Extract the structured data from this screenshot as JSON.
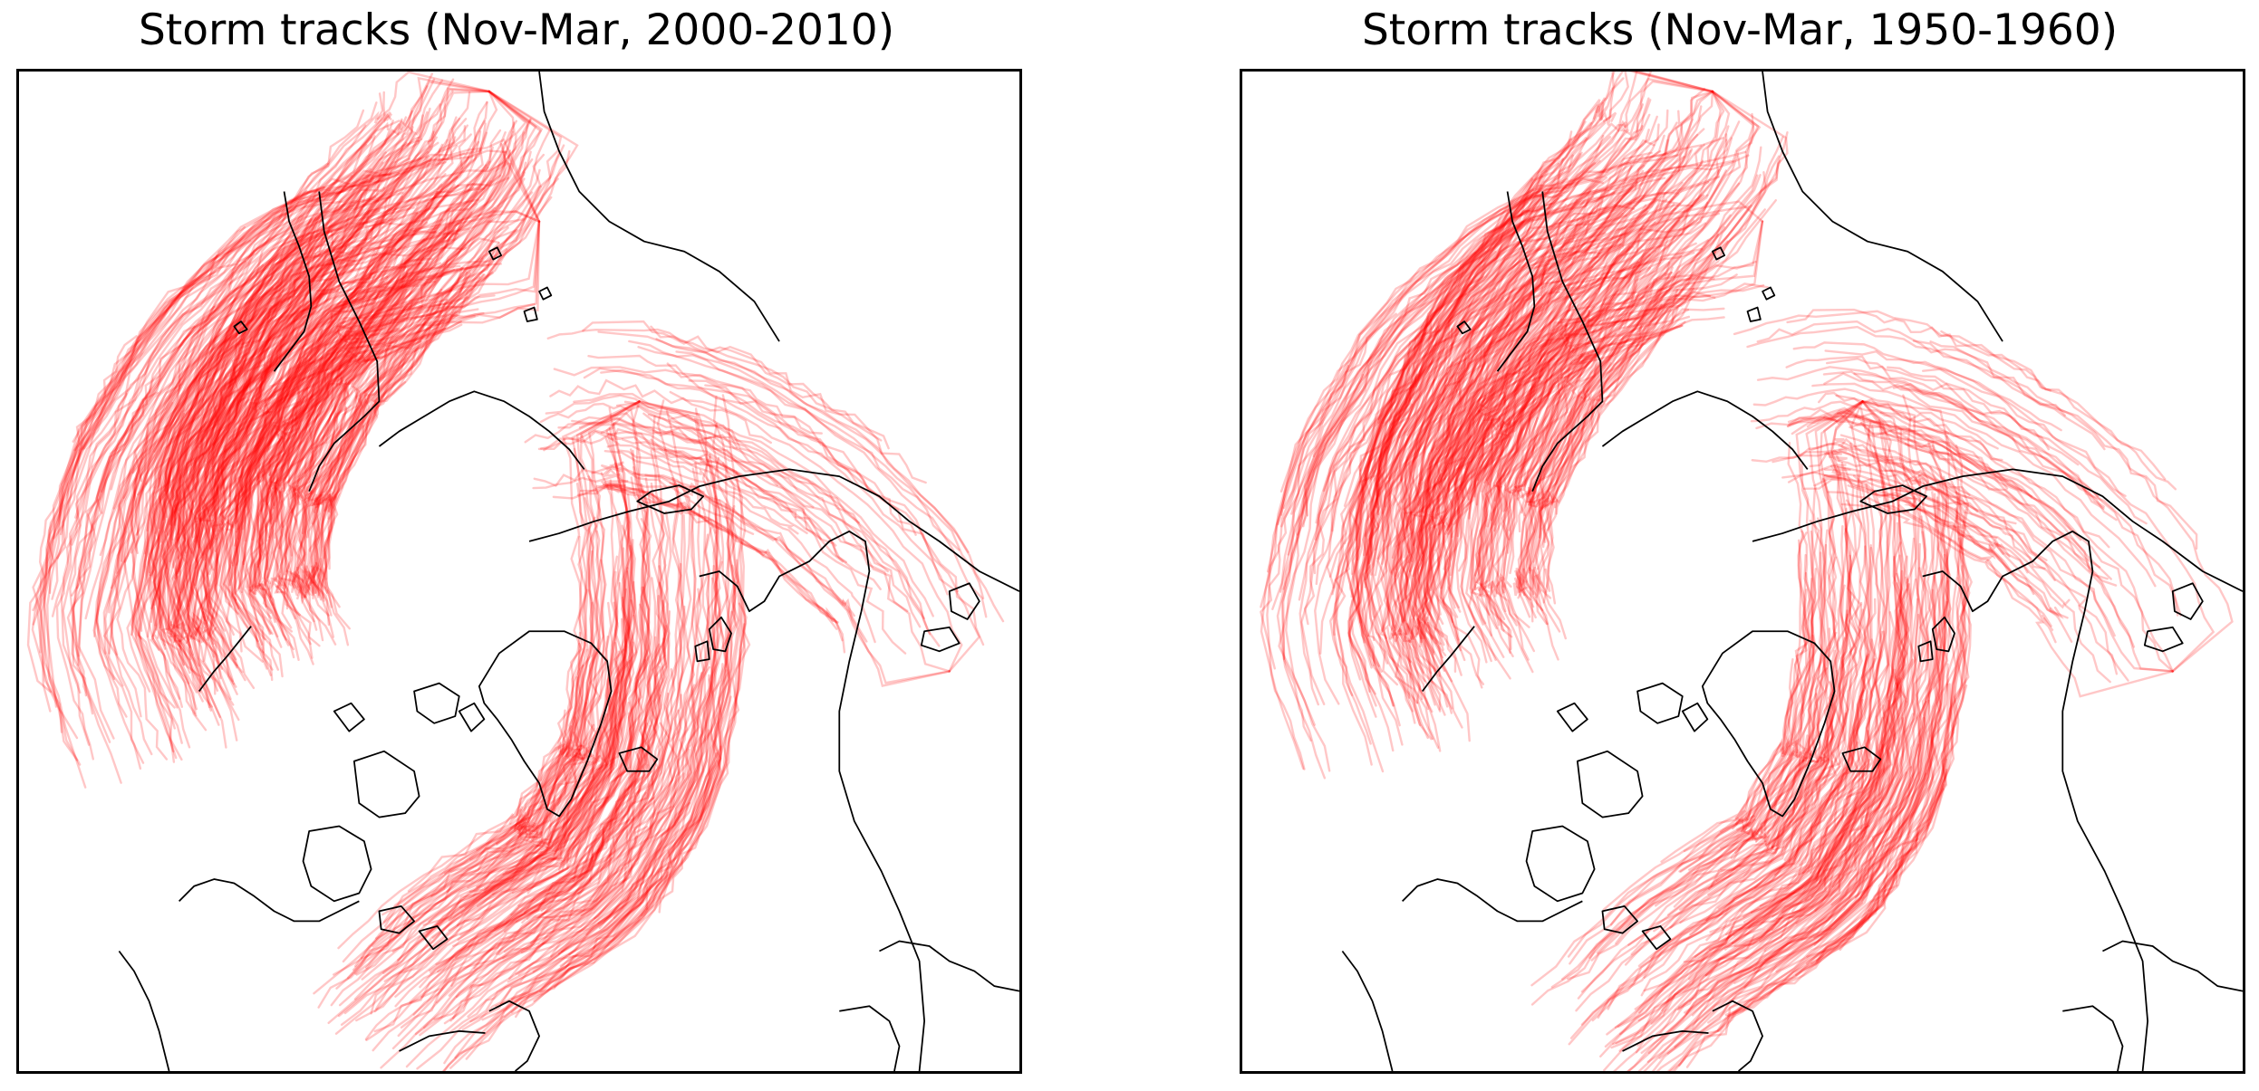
{
  "figure": {
    "panels": [
      {
        "title": "Storm tracks (Nov-Mar, 2000-2010)",
        "track_color": "#ff0000",
        "coastline_color": "#000000",
        "track_count_estimate": 620
      },
      {
        "title": "Storm tracks (Nov-Mar, 1950-1960)",
        "track_color": "#ff0000",
        "coastline_color": "#000000",
        "track_count_estimate": 560
      }
    ]
  }
}
